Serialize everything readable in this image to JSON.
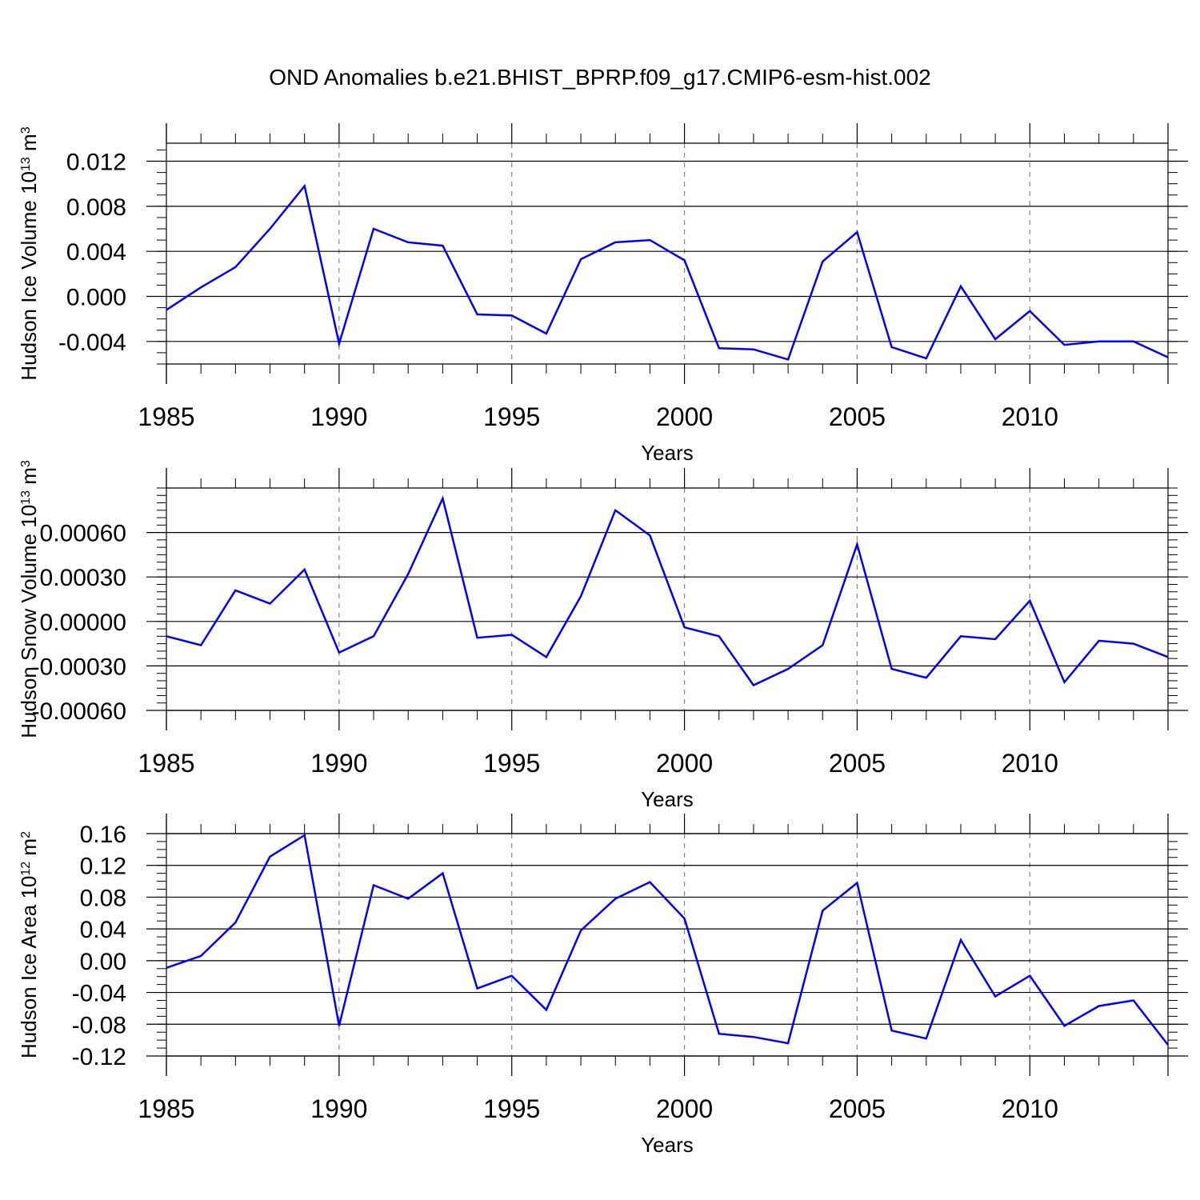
{
  "figure": {
    "title": "OND Anomalies b.e21.BHIST_BPRP.f09_g17.CMIP6-esm-hist.002"
  },
  "chart_data": [
    {
      "type": "line",
      "title": "OND Anomalies b.e21.BHIST_BPRP.f09_g17.CMIP6-esm-hist.002",
      "xlabel": "Years",
      "ylabel": {
        "main": "Hudson Ice Volume 10",
        "sup": "13",
        "unit": " m",
        "unit_sup": "3"
      },
      "xlim": [
        1985,
        2014
      ],
      "ylim": [
        -0.006,
        0.0136
      ],
      "xticks": [
        "1985",
        "1990",
        "1995",
        "2000",
        "2005",
        "2010"
      ],
      "yticks": [
        "-0.004",
        "0.000",
        "0.004",
        "0.008",
        "0.012"
      ],
      "x": [
        1985,
        1986,
        1987,
        1988,
        1989,
        1990,
        1991,
        1992,
        1993,
        1994,
        1995,
        1996,
        1997,
        1998,
        1999,
        2000,
        2001,
        2002,
        2003,
        2004,
        2005,
        2006,
        2007,
        2008,
        2009,
        2010,
        2011,
        2012,
        2013,
        2014
      ],
      "series": [
        {
          "name": "Hudson Ice Volume",
          "color": "#0000ff",
          "values": [
            -0.0012,
            0.0008,
            0.0026,
            0.006,
            0.0098,
            -0.0042,
            0.006,
            0.0048,
            0.0045,
            -0.0016,
            -0.0017,
            -0.0033,
            0.0033,
            0.0048,
            0.005,
            0.0032,
            -0.0046,
            -0.0047,
            -0.0056,
            0.0031,
            0.0057,
            -0.0045,
            -0.0055,
            0.0009,
            -0.0038,
            -0.0013,
            -0.0043,
            -0.004,
            -0.004,
            -0.0054
          ]
        }
      ]
    },
    {
      "type": "line",
      "xlabel": "Years",
      "ylabel": {
        "main": "Hudson Snow Volume 10",
        "sup": "13",
        "unit": " m",
        "unit_sup": "3"
      },
      "xlim": [
        1985,
        2014
      ],
      "ylim": [
        -0.0006,
        0.0009
      ],
      "xticks": [
        "1985",
        "1990",
        "1995",
        "2000",
        "2005",
        "2010"
      ],
      "yticks": [
        "-0.00060",
        "-0.00030",
        "0.00000",
        "0.00030",
        "0.00060"
      ],
      "x": [
        1985,
        1986,
        1987,
        1988,
        1989,
        1990,
        1991,
        1992,
        1993,
        1994,
        1995,
        1996,
        1997,
        1998,
        1999,
        2000,
        2001,
        2002,
        2003,
        2004,
        2005,
        2006,
        2007,
        2008,
        2009,
        2010,
        2011,
        2012,
        2013,
        2014
      ],
      "series": [
        {
          "name": "Hudson Snow Volume",
          "color": "#0000ff",
          "values": [
            -0.0001,
            -0.00016,
            0.00021,
            0.00012,
            0.00035,
            -0.00021,
            -0.0001,
            0.00032,
            0.00083,
            -0.00011,
            -9e-05,
            -0.00024,
            0.00017,
            0.00075,
            0.00058,
            -4e-05,
            -0.0001,
            -0.00043,
            -0.00032,
            -0.00016,
            0.00052,
            -0.00032,
            -0.00038,
            -0.0001,
            -0.00012,
            0.00014,
            -0.00041,
            -0.00013,
            -0.00015,
            -0.00024
          ]
        }
      ]
    },
    {
      "type": "line",
      "xlabel": "Years",
      "ylabel": {
        "main": "Hudson Ice Area 10",
        "sup": "12",
        "unit": " m",
        "unit_sup": "2"
      },
      "xlim": [
        1985,
        2014
      ],
      "ylim": [
        -0.12,
        0.16
      ],
      "xticks": [
        "1985",
        "1990",
        "1995",
        "2000",
        "2005",
        "2010"
      ],
      "yticks": [
        "-0.12",
        "-0.08",
        "-0.04",
        "0.00",
        "0.04",
        "0.08",
        "0.12",
        "0.16"
      ],
      "x": [
        1985,
        1986,
        1987,
        1988,
        1989,
        1990,
        1991,
        1992,
        1993,
        1994,
        1995,
        1996,
        1997,
        1998,
        1999,
        2000,
        2001,
        2002,
        2003,
        2004,
        2005,
        2006,
        2007,
        2008,
        2009,
        2010,
        2011,
        2012,
        2013,
        2014
      ],
      "series": [
        {
          "name": "Hudson Ice Area",
          "color": "#0000ff",
          "values": [
            -0.009,
            0.006,
            0.048,
            0.131,
            0.158,
            -0.082,
            0.095,
            0.078,
            0.11,
            -0.035,
            -0.019,
            -0.062,
            0.038,
            0.078,
            0.099,
            0.053,
            -0.092,
            -0.096,
            -0.104,
            0.063,
            0.098,
            -0.088,
            -0.098,
            0.026,
            -0.045,
            -0.019,
            -0.082,
            -0.057,
            -0.05,
            -0.106
          ]
        }
      ]
    }
  ]
}
